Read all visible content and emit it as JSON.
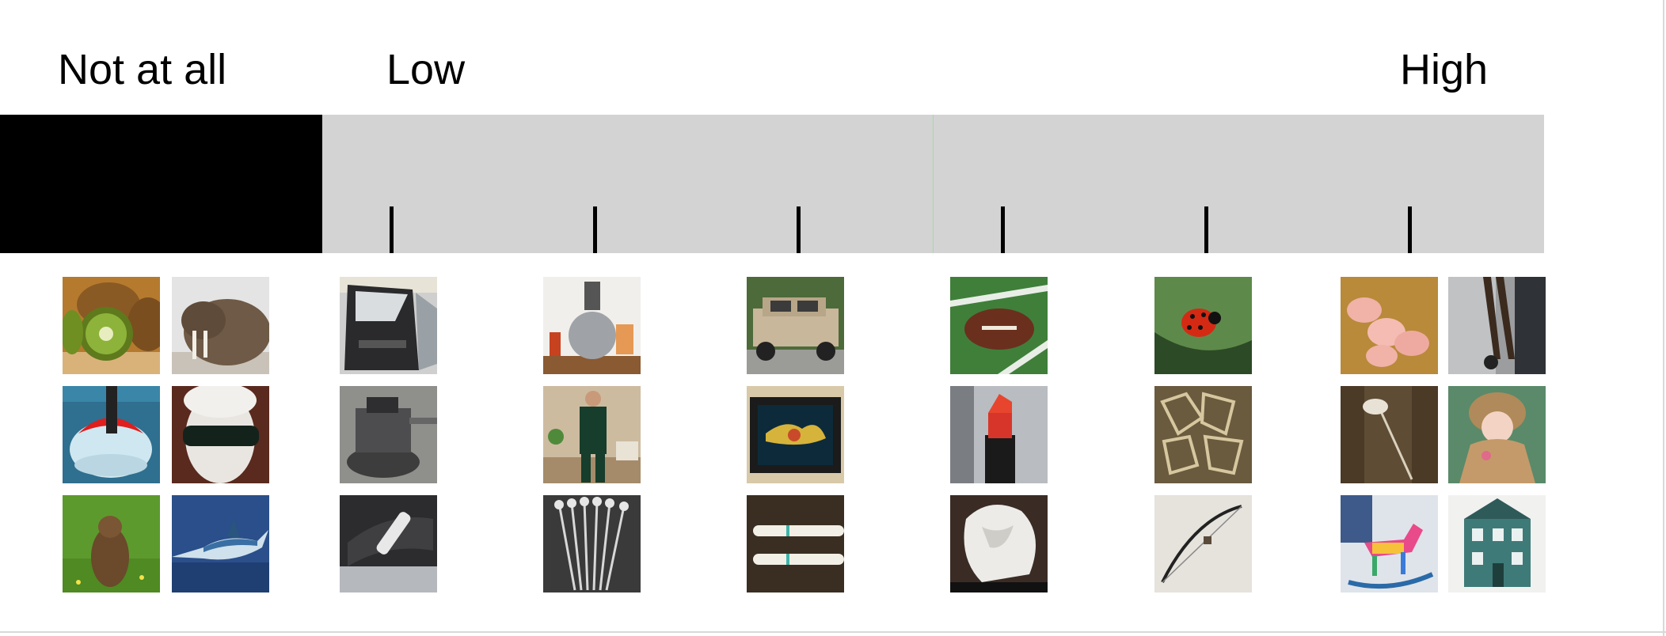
{
  "scale": {
    "labels": {
      "none": "Not at all",
      "low": "Low",
      "high": "High"
    },
    "colors": {
      "none_band": "#000000",
      "rating_band": "#d3d3d3",
      "midline": "#a6d9a6",
      "tick": "#000000"
    },
    "tick_count": 6
  },
  "image_groups": [
    {
      "level": "Not at all",
      "images": [
        "kiwi",
        "walrus",
        "mouthguard",
        "blindfold-mannequin",
        "groundhog",
        "swordfish"
      ]
    },
    {
      "level": "1",
      "images": [
        "car-door",
        "vise",
        "handbrake"
      ]
    },
    {
      "level": "2",
      "images": [
        "juicer",
        "man-in-sweatsuit",
        "cocktail-stirrers"
      ]
    },
    {
      "level": "3",
      "images": [
        "humvee",
        "picture-frame",
        "electric-toothbrushes"
      ]
    },
    {
      "level": "4",
      "images": [
        "football",
        "lipstick",
        "white-bust"
      ]
    },
    {
      "level": "5",
      "images": [
        "ladybug",
        "cookie-cutters",
        "bow"
      ]
    },
    {
      "level": "6",
      "images": [
        "piglets",
        "hand-truck",
        "hobby-horse",
        "doll",
        "rocking-horse",
        "dollhouse"
      ]
    }
  ]
}
